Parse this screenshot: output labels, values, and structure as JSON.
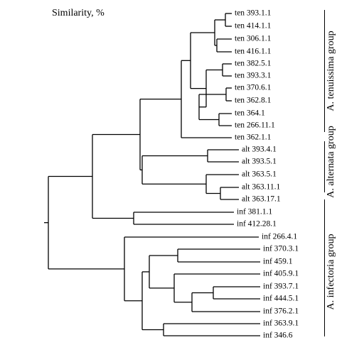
{
  "header": {
    "similarity_label": "Similarity, %"
  },
  "leaves": [
    "ten 393.1.1",
    "ten 414.1.1",
    "ten 306.1.1",
    "ten 416.1.1",
    "ten 382.5.1",
    "ten 393.3.1",
    "ten 370.6.1",
    "ten 362.8.1",
    "ten 364.1",
    "ten 266.11.1",
    "ten 362.1.1",
    "alt 393.4.1",
    "alt 393.5.1",
    "alt 363.5.1",
    "alt 363.11.1",
    "alt 363.17.1",
    "inf 381.1.1",
    "inf 412.28.1",
    "inf 266.4.1",
    "inf 370.3.1",
    "inf 459.1",
    "inf 405.9.1",
    "inf 393.7.1",
    "inf 444.5.1",
    "inf 376.2.1",
    "inf 363.9.1",
    "inf 346.6"
  ],
  "groups": [
    {
      "label": "A. tenuissima group"
    },
    {
      "label": "A. alternata group"
    },
    {
      "label": "A. infectoria group"
    }
  ],
  "colors": {
    "line": "#000000",
    "background": "#ffffff"
  }
}
